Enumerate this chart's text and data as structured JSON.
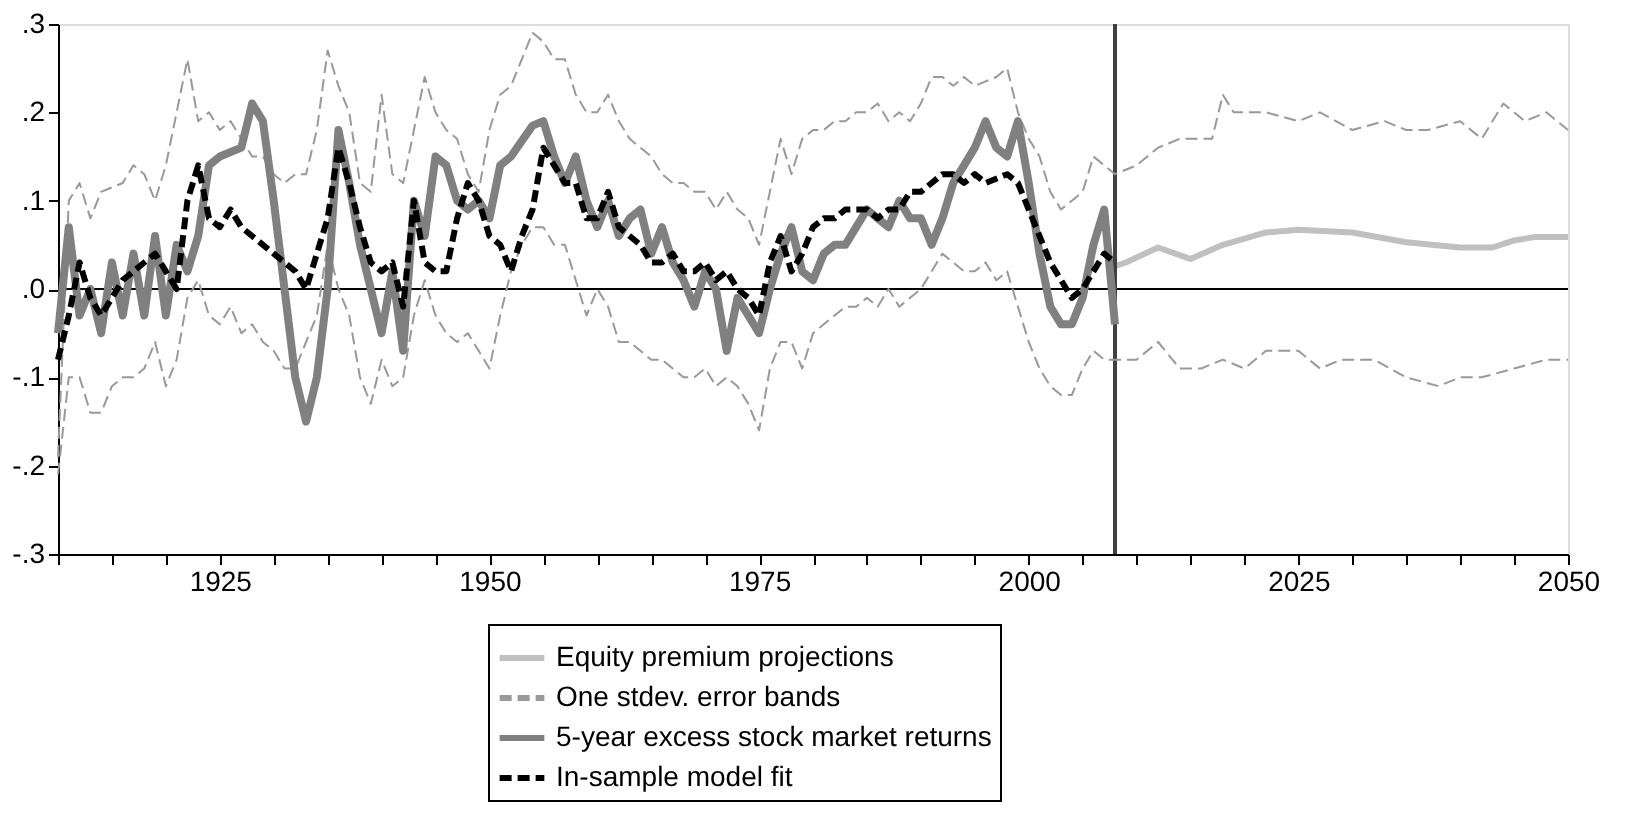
{
  "chart_data": {
    "type": "line",
    "xlim": [
      1910,
      2050
    ],
    "ylim": [
      -0.3,
      0.3
    ],
    "xticks": [
      {
        "value": 1910,
        "label": null
      },
      {
        "value": 1915,
        "label": null
      },
      {
        "value": 1920,
        "label": null
      },
      1925,
      {
        "value": 1930,
        "label": null
      },
      {
        "value": 1935,
        "label": null
      },
      {
        "value": 1940,
        "label": null
      },
      {
        "value": 1945,
        "label": null
      },
      1950,
      {
        "value": 1955,
        "label": null
      },
      {
        "value": 1960,
        "label": null
      },
      {
        "value": 1965,
        "label": null
      },
      {
        "value": 1970,
        "label": null
      },
      1975,
      {
        "value": 1980,
        "label": null
      },
      {
        "value": 1985,
        "label": null
      },
      {
        "value": 1990,
        "label": null
      },
      {
        "value": 1995,
        "label": null
      },
      2000,
      {
        "value": 2005,
        "label": null
      },
      {
        "value": 2010,
        "label": null
      },
      {
        "value": 2015,
        "label": null
      },
      {
        "value": 2020,
        "label": null
      },
      2025,
      {
        "value": 2030,
        "label": null
      },
      {
        "value": 2035,
        "label": null
      },
      {
        "value": 2040,
        "label": null
      },
      {
        "value": 2045,
        "label": null
      },
      2050
    ],
    "yticks": [
      {
        "value": -0.3,
        "label": "-.3"
      },
      {
        "value": -0.2,
        "label": "-.2"
      },
      {
        "value": -0.1,
        "label": "-.1"
      },
      {
        "value": 0,
        "label": ".0"
      },
      {
        "value": 0.1,
        "label": ".1"
      },
      {
        "value": 0.2,
        "label": ".2"
      },
      {
        "value": 0.3,
        "label": ".3"
      }
    ],
    "grid": false,
    "legend": "bottom",
    "marker": "none",
    "ref_lines": [
      {
        "axis": "y",
        "value": 0,
        "color": "#000000"
      },
      {
        "axis": "x",
        "value": 2008,
        "color": "#404040"
      }
    ],
    "series": [
      {
        "name": "Equity premium projections",
        "color": "#c0c0c0",
        "line_style": "solid",
        "x": [
          2008,
          2009,
          2012,
          2015,
          2018,
          2022,
          2025,
          2030,
          2035,
          2040,
          2043,
          2045,
          2047,
          2050
        ],
        "values": [
          0.026,
          0.03,
          0.047,
          0.034,
          0.05,
          0.064,
          0.067,
          0.064,
          0.053,
          0.047,
          0.047,
          0.055,
          0.059,
          0.059
        ]
      },
      {
        "name": "One stdev. error bands",
        "color": "#999999",
        "line_style": "dashed",
        "x": [
          1910,
          1911,
          1912,
          1913,
          1914,
          1916,
          1917,
          1918,
          1919,
          1920,
          1922,
          1923,
          1924,
          1925,
          1926,
          1927,
          1928,
          1929,
          1930,
          1931,
          1932,
          1933,
          1934,
          1935,
          1936,
          1937,
          1938,
          1939,
          1940,
          1941,
          1942,
          1943,
          1944,
          1945,
          1946,
          1947,
          1948,
          1949,
          1950,
          1951,
          1952,
          1953,
          1954,
          1955,
          1956,
          1957,
          1958,
          1959,
          1960,
          1961,
          1962,
          1963,
          1964,
          1965,
          1966,
          1967,
          1968,
          1969,
          1970,
          1971,
          1972,
          1973,
          1974,
          1975,
          1976,
          1977,
          1978,
          1979,
          1980,
          1981,
          1982,
          1983,
          1984,
          1985,
          1986,
          1987,
          1988,
          1989,
          1990,
          1991,
          1992,
          1993,
          1994,
          1995,
          1997,
          1998,
          1999,
          2000,
          2001,
          2002,
          2003,
          2004,
          2005,
          2006,
          2007,
          2008,
          2010,
          2012,
          2014,
          2017,
          2018,
          2019,
          2022,
          2025,
          2027,
          2030,
          2033,
          2035,
          2037,
          2040,
          2042,
          2044,
          2046,
          2048,
          2050
        ],
        "values": [
          -0.19,
          0.1,
          0.12,
          0.08,
          0.11,
          0.12,
          0.14,
          0.13,
          0.1,
          0.14,
          0.26,
          0.19,
          0.2,
          0.18,
          0.19,
          0.17,
          0.15,
          0.15,
          0.13,
          0.12,
          0.13,
          0.13,
          0.18,
          0.27,
          0.23,
          0.2,
          0.12,
          0.11,
          0.22,
          0.13,
          0.12,
          0.18,
          0.24,
          0.2,
          0.18,
          0.17,
          0.13,
          0.11,
          0.18,
          0.22,
          0.23,
          0.26,
          0.29,
          0.28,
          0.26,
          0.26,
          0.22,
          0.2,
          0.2,
          0.22,
          0.19,
          0.17,
          0.16,
          0.15,
          0.13,
          0.12,
          0.12,
          0.11,
          0.11,
          0.09,
          0.11,
          0.09,
          0.08,
          0.05,
          0.11,
          0.17,
          0.13,
          0.17,
          0.18,
          0.18,
          0.19,
          0.19,
          0.2,
          0.2,
          0.21,
          0.19,
          0.2,
          0.19,
          0.21,
          0.24,
          0.24,
          0.23,
          0.24,
          0.23,
          0.24,
          0.25,
          0.2,
          0.17,
          0.15,
          0.11,
          0.09,
          0.1,
          0.11,
          0.15,
          0.14,
          0.13,
          0.14,
          0.16,
          0.17,
          0.17,
          0.22,
          0.2,
          0.2,
          0.19,
          0.2,
          0.18,
          0.19,
          0.18,
          0.18,
          0.19,
          0.17,
          0.21,
          0.19,
          0.2,
          0.18
        ]
      },
      {
        "color": "#999999",
        "line_style": "dashed",
        "x": [
          1910,
          1911,
          1912,
          1913,
          1914,
          1915,
          1916,
          1917,
          1918,
          1919,
          1920,
          1921,
          1922,
          1923,
          1924,
          1925,
          1926,
          1927,
          1928,
          1929,
          1930,
          1931,
          1932,
          1933,
          1934,
          1935,
          1936,
          1937,
          1938,
          1939,
          1940,
          1941,
          1942,
          1943,
          1944,
          1945,
          1946,
          1947,
          1948,
          1949,
          1950,
          1951,
          1952,
          1953,
          1954,
          1955,
          1956,
          1957,
          1958,
          1959,
          1960,
          1961,
          1962,
          1963,
          1964,
          1965,
          1966,
          1967,
          1968,
          1969,
          1970,
          1971,
          1972,
          1973,
          1974,
          1975,
          1976,
          1977,
          1978,
          1979,
          1980,
          1981,
          1982,
          1983,
          1984,
          1985,
          1986,
          1987,
          1988,
          1989,
          1990,
          1991,
          1992,
          1993,
          1994,
          1995,
          1996,
          1997,
          1998,
          1999,
          2000,
          2001,
          2002,
          2003,
          2004,
          2005,
          2006,
          2007,
          2008,
          2010,
          2012,
          2014,
          2016,
          2018,
          2020,
          2022,
          2025,
          2027,
          2029,
          2032,
          2035,
          2038,
          2040,
          2042,
          2045,
          2048,
          2050
        ],
        "values": [
          -0.21,
          -0.1,
          -0.1,
          -0.14,
          -0.14,
          -0.11,
          -0.1,
          -0.1,
          -0.09,
          -0.06,
          -0.11,
          -0.08,
          -0.01,
          0.01,
          -0.03,
          -0.04,
          -0.02,
          -0.05,
          -0.04,
          -0.06,
          -0.07,
          -0.09,
          -0.09,
          -0.06,
          -0.03,
          0.05,
          0.0,
          -0.03,
          -0.1,
          -0.13,
          -0.08,
          -0.11,
          -0.1,
          -0.03,
          0.01,
          -0.03,
          -0.05,
          -0.06,
          -0.05,
          -0.07,
          -0.09,
          -0.03,
          0.02,
          0.05,
          0.07,
          0.07,
          0.05,
          0.05,
          0.01,
          -0.03,
          0.0,
          -0.02,
          -0.06,
          -0.06,
          -0.07,
          -0.08,
          -0.08,
          -0.09,
          -0.1,
          -0.1,
          -0.09,
          -0.11,
          -0.1,
          -0.11,
          -0.13,
          -0.16,
          -0.09,
          -0.06,
          -0.06,
          -0.09,
          -0.05,
          -0.04,
          -0.03,
          -0.02,
          -0.02,
          -0.01,
          -0.02,
          0.0,
          -0.02,
          -0.01,
          0.0,
          0.02,
          0.04,
          0.03,
          0.02,
          0.02,
          0.03,
          0.01,
          0.02,
          -0.02,
          -0.06,
          -0.09,
          -0.11,
          -0.12,
          -0.12,
          -0.09,
          -0.07,
          -0.08,
          -0.08,
          -0.08,
          -0.06,
          -0.09,
          -0.09,
          -0.08,
          -0.09,
          -0.07,
          -0.07,
          -0.09,
          -0.08,
          -0.08,
          -0.1,
          -0.11,
          -0.1,
          -0.1,
          -0.09,
          -0.08,
          -0.08
        ]
      },
      {
        "name": "5-year excess stock market returns",
        "color": "#808080",
        "line_style": "solid",
        "x": [
          1910,
          1911,
          1912,
          1913,
          1914,
          1915,
          1916,
          1917,
          1918,
          1919,
          1920,
          1921,
          1922,
          1923,
          1924,
          1925,
          1927,
          1928,
          1929,
          1930,
          1931,
          1932,
          1933,
          1934,
          1935,
          1936,
          1937,
          1938,
          1939,
          1940,
          1941,
          1942,
          1943,
          1944,
          1945,
          1946,
          1947,
          1948,
          1949,
          1950,
          1951,
          1952,
          1954,
          1955,
          1956,
          1957,
          1958,
          1959,
          1960,
          1961,
          1962,
          1963,
          1964,
          1965,
          1966,
          1967,
          1968,
          1969,
          1970,
          1971,
          1972,
          1973,
          1974,
          1975,
          1976,
          1977,
          1978,
          1979,
          1980,
          1981,
          1982,
          1983,
          1984,
          1985,
          1986,
          1987,
          1988,
          1989,
          1990,
          1991,
          1992,
          1993,
          1994,
          1995,
          1996,
          1997,
          1998,
          1999,
          2000,
          2001,
          2002,
          2003,
          2004,
          2005,
          2006,
          2007,
          2008
        ],
        "values": [
          -0.05,
          0.07,
          -0.03,
          0.0,
          -0.05,
          0.03,
          -0.03,
          0.04,
          -0.03,
          0.06,
          -0.03,
          0.05,
          0.02,
          0.06,
          0.14,
          0.15,
          0.16,
          0.21,
          0.19,
          0.1,
          0.0,
          -0.1,
          -0.15,
          -0.1,
          0.0,
          0.18,
          0.12,
          0.05,
          0.0,
          -0.05,
          0.02,
          -0.07,
          0.1,
          0.06,
          0.15,
          0.14,
          0.1,
          0.09,
          0.1,
          0.08,
          0.14,
          0.15,
          0.185,
          0.19,
          0.15,
          0.12,
          0.15,
          0.1,
          0.07,
          0.1,
          0.06,
          0.08,
          0.09,
          0.04,
          0.07,
          0.03,
          0.01,
          -0.02,
          0.02,
          0.0,
          -0.07,
          -0.01,
          -0.03,
          -0.05,
          0.0,
          0.04,
          0.07,
          0.02,
          0.01,
          0.04,
          0.05,
          0.05,
          0.07,
          0.09,
          0.08,
          0.07,
          0.1,
          0.08,
          0.08,
          0.05,
          0.08,
          0.12,
          0.14,
          0.16,
          0.19,
          0.16,
          0.15,
          0.19,
          0.12,
          0.04,
          -0.02,
          -0.04,
          -0.04,
          -0.01,
          0.05,
          0.09,
          -0.04
        ]
      },
      {
        "name": "In-sample model fit",
        "color": "#000000",
        "line_style": "dashed",
        "x": [
          1910,
          1911,
          1912,
          1913,
          1914,
          1915,
          1916,
          1917,
          1918,
          1919,
          1920,
          1921,
          1922,
          1923,
          1924,
          1925,
          1926,
          1927,
          1928,
          1929,
          1930,
          1931,
          1932,
          1933,
          1934,
          1935,
          1936,
          1937,
          1938,
          1939,
          1940,
          1941,
          1942,
          1943,
          1944,
          1945,
          1946,
          1947,
          1948,
          1949,
          1950,
          1951,
          1952,
          1953,
          1954,
          1955,
          1956,
          1957,
          1958,
          1959,
          1960,
          1961,
          1962,
          1963,
          1964,
          1965,
          1966,
          1967,
          1968,
          1969,
          1970,
          1971,
          1972,
          1973,
          1974,
          1975,
          1976,
          1977,
          1978,
          1979,
          1980,
          1981,
          1982,
          1983,
          1984,
          1985,
          1986,
          1987,
          1988,
          1989,
          1990,
          1991,
          1992,
          1993,
          1994,
          1995,
          1996,
          1998,
          1999,
          2000,
          2001,
          2002,
          2003,
          2004,
          2005,
          2006,
          2007,
          2008
        ],
        "values": [
          -0.08,
          -0.03,
          0.03,
          -0.01,
          -0.03,
          -0.01,
          0.01,
          0.02,
          0.03,
          0.04,
          0.02,
          0.0,
          0.1,
          0.14,
          0.08,
          0.07,
          0.09,
          0.07,
          0.06,
          0.05,
          0.04,
          0.03,
          0.02,
          0.0,
          0.04,
          0.08,
          0.16,
          0.12,
          0.07,
          0.03,
          0.02,
          0.03,
          -0.02,
          0.1,
          0.03,
          0.02,
          0.02,
          0.08,
          0.12,
          0.1,
          0.06,
          0.05,
          0.02,
          0.06,
          0.09,
          0.16,
          0.14,
          0.12,
          0.12,
          0.08,
          0.08,
          0.11,
          0.07,
          0.06,
          0.05,
          0.03,
          0.03,
          0.04,
          0.02,
          0.02,
          0.03,
          0.01,
          0.02,
          0.0,
          -0.01,
          -0.03,
          0.03,
          0.06,
          0.02,
          0.04,
          0.07,
          0.08,
          0.08,
          0.09,
          0.09,
          0.09,
          0.08,
          0.09,
          0.09,
          0.11,
          0.11,
          0.12,
          0.13,
          0.13,
          0.12,
          0.13,
          0.12,
          0.13,
          0.12,
          0.09,
          0.06,
          0.03,
          0.01,
          -0.01,
          0.0,
          0.02,
          0.04,
          0.03
        ]
      }
    ]
  }
}
